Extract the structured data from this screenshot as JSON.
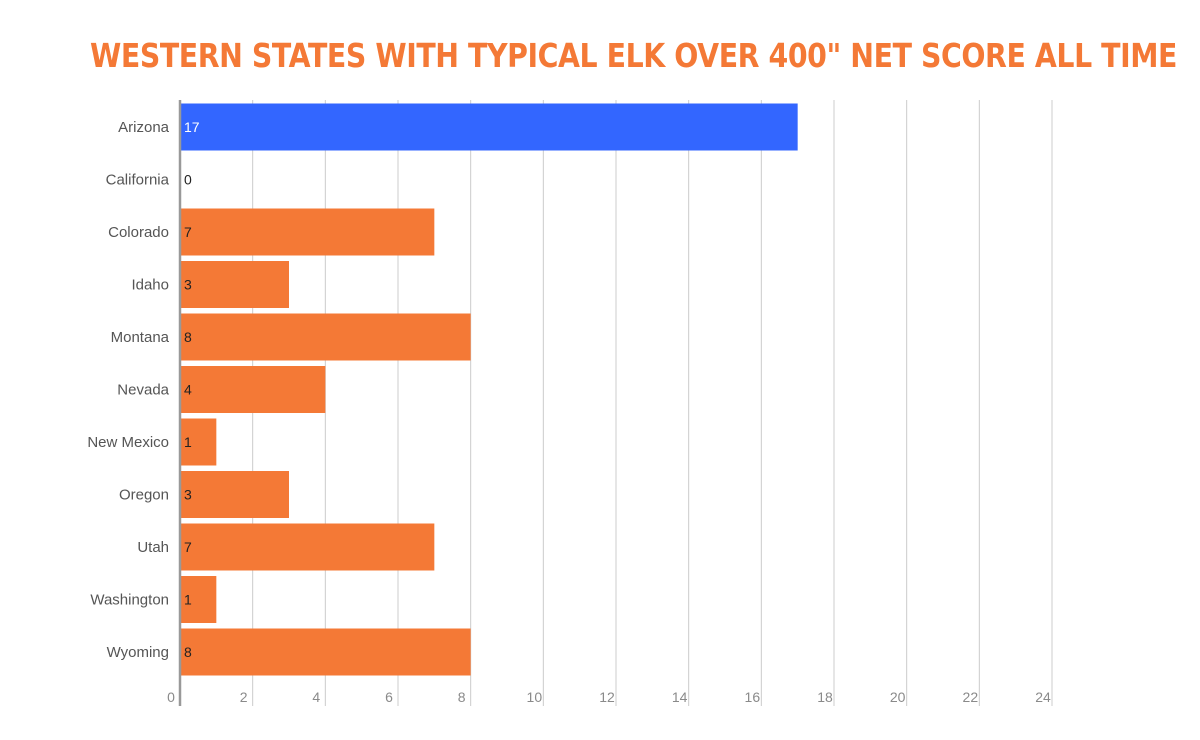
{
  "colors": {
    "title": "#f47936",
    "bar": "#f47936",
    "highlight": "#3366ff",
    "grid": "#cccccc",
    "axis": "#999999",
    "label_text": "#555555",
    "value_text_on_orange": "#222222",
    "value_text_on_blue": "#ffffff"
  },
  "chart_data": {
    "type": "bar",
    "orientation": "horizontal",
    "title": "WESTERN STATES WITH TYPICAL ELK OVER 400\" NET SCORE ALL TIME",
    "xlabel": "",
    "ylabel": "",
    "categories": [
      "Arizona",
      "California",
      "Colorado",
      "Idaho",
      "Montana",
      "Nevada",
      "New Mexico",
      "Oregon",
      "Utah",
      "Washington",
      "Wyoming"
    ],
    "values": [
      17,
      0,
      7,
      3,
      8,
      4,
      1,
      3,
      7,
      1,
      8
    ],
    "highlighted_category": "Arizona",
    "xlim": [
      0,
      24
    ],
    "x_ticks": [
      0,
      2,
      4,
      6,
      8,
      10,
      12,
      14,
      16,
      18,
      20,
      22,
      24
    ],
    "grid": "vertical",
    "legend": "none",
    "data_labels": true
  }
}
